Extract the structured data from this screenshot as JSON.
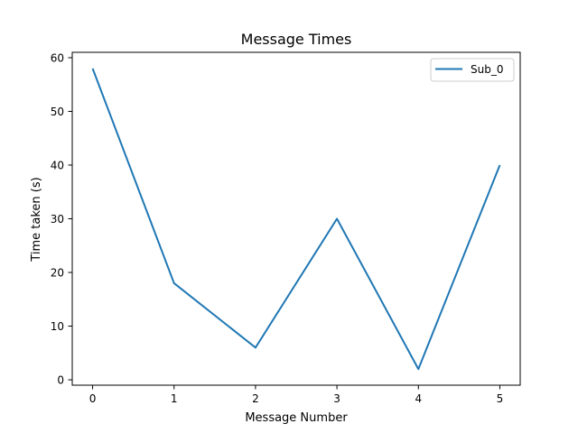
{
  "chart_data": {
    "type": "line",
    "title": "Message Times",
    "xlabel": "Message Number",
    "ylabel": "Time taken (s)",
    "x": [
      0,
      1,
      2,
      3,
      4,
      5
    ],
    "series": [
      {
        "name": "Sub_0",
        "values": [
          58,
          18,
          6,
          30,
          2,
          40
        ],
        "color": "#1f77b4"
      }
    ],
    "xlim": [
      -0.25,
      5.25
    ],
    "ylim": [
      -1,
      61
    ],
    "xticks": [
      0,
      1,
      2,
      3,
      4,
      5
    ],
    "xtick_labels": [
      "0",
      "1",
      "2",
      "3",
      "4",
      "5"
    ],
    "yticks": [
      0,
      10,
      20,
      30,
      40,
      50,
      60
    ],
    "ytick_labels": [
      "0",
      "10",
      "20",
      "30",
      "40",
      "50",
      "60"
    ],
    "grid": false,
    "legend_position": "top-right"
  }
}
